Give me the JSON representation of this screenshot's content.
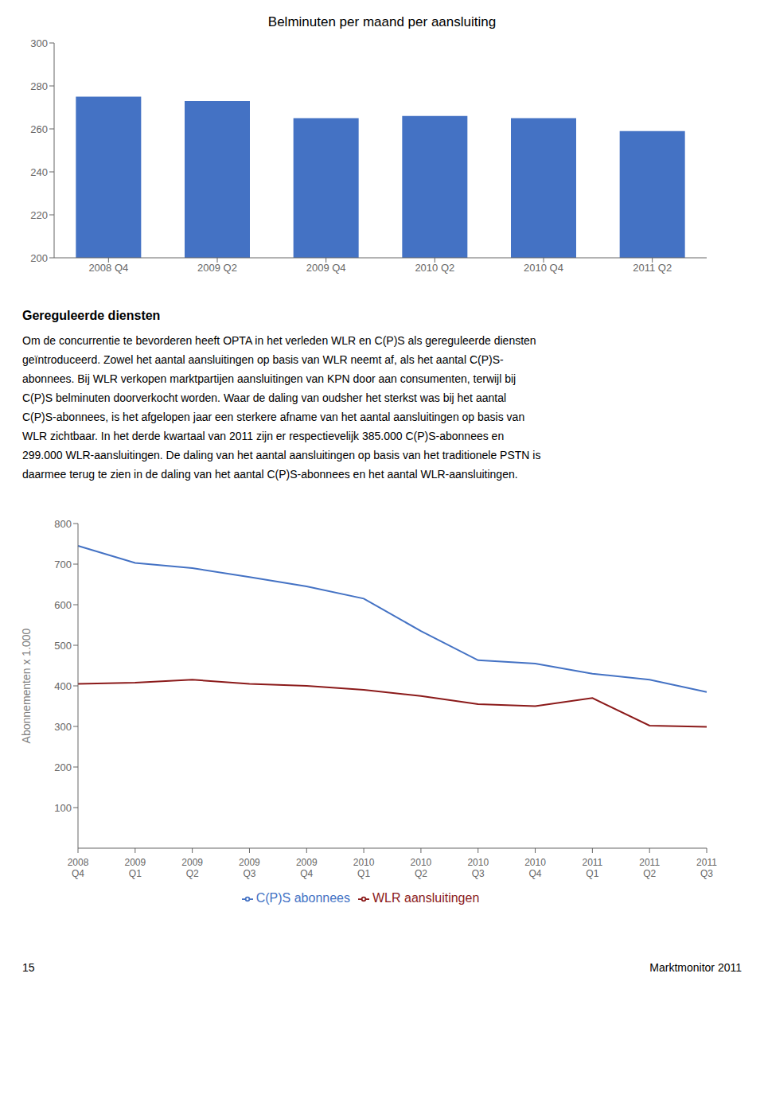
{
  "chart_data": [
    {
      "type": "bar",
      "title": "Belminuten per maand per aansluiting",
      "categories": [
        "2008 Q4",
        "2009 Q2",
        "2009 Q4",
        "2010 Q2",
        "2010 Q4",
        "2011 Q2"
      ],
      "values": [
        275,
        273,
        265,
        266,
        265,
        259
      ],
      "color": "#4472C4",
      "ylim": [
        200,
        300
      ],
      "yticks": [
        200,
        220,
        240,
        260,
        280,
        300
      ],
      "grid": false,
      "annotations": [
        "Gereguleerde diensten",
        "Om de concurrentie te bevorderen heeft OPTA in het verleden WLR en C(P)S als gereguleerde diensten",
        "geïntroduceerd. Zowel het aantal aansluitingen op basis van WLR neemt af, als het aantal C(P)S-",
        "abonnees. Bij WLR verkopen marktpartijen aansluitingen van KPN door aan consumenten, terwijl bij",
        "C(P)S belminuten doorverkocht worden. Waar de daling van oudsher het sterkst was bij het aantal",
        "C(P)S-abonnees, is het afgelopen jaar een sterkere afname van het aantal aansluitingen op basis van",
        "WLR zichtbaar. In het derde kwartaal van 2011 zijn er respectievelijk 385.000 C(P)S-abonnees en",
        "299.000 WLR-aansluitingen. De daling van het aantal aansluitingen op basis van het traditionele PSTN is",
        "daarmee terug te zien in de daling van het aantal C(P)S-abonnees en het aantal WLR-aansluitingen."
      ]
    },
    {
      "type": "line",
      "categories": [
        "2008\nQ4",
        "2009\nQ1",
        "2009\nQ2",
        "2009\nQ3",
        "2009\nQ4",
        "2010\nQ1",
        "2010\nQ2",
        "2010\nQ3",
        "2010\nQ4",
        "2011\nQ1",
        "2011\nQ2",
        "2011\nQ3"
      ],
      "series": [
        {
          "name": "C(P)S abonnees",
          "color": "#4472C4",
          "values": [
            745,
            703,
            690,
            668,
            645,
            615,
            535,
            463,
            455,
            430,
            415,
            385
          ]
        },
        {
          "name": "WLR aansluitingen",
          "color": "#8B1A1A",
          "values": [
            405,
            408,
            415,
            405,
            400,
            390,
            375,
            355,
            350,
            370,
            302,
            299
          ]
        }
      ],
      "ylim": [
        0,
        800
      ],
      "yticks": [
        100,
        200,
        300,
        400,
        500,
        600,
        700,
        800
      ],
      "ylabel": "Abonnementen x 1.000",
      "grid": false,
      "legend": "bottom",
      "annotations": [
        "15",
        "Marktmonitor 2011"
      ]
    }
  ]
}
